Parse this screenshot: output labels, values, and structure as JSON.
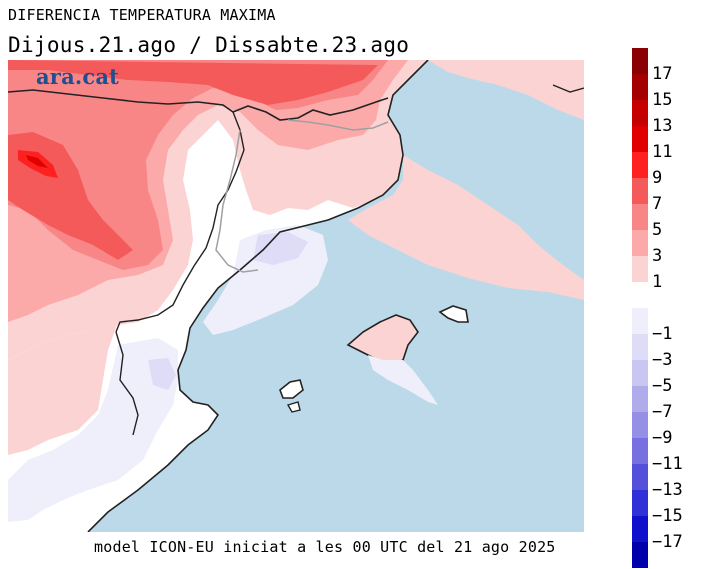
{
  "header": {
    "title": "DIFERENCIA TEMPERATURA MAXIMA",
    "dates": "Dijous.21.ago / Dissabte.23.ago"
  },
  "brand": {
    "label": "ara.cat",
    "color": "#1f4f8f"
  },
  "footer": {
    "text": "model ICON-EU iniciat a les 00 UTC del 21 ago 2025"
  },
  "colors": {
    "sea": "#bcd9ea",
    "border_line": "#222222",
    "regional_line": "#a0a0a0"
  },
  "legend": {
    "bins": [
      {
        "label": "17",
        "color": "#8b0000"
      },
      {
        "label": "15",
        "color": "#a50000"
      },
      {
        "label": "13",
        "color": "#c40000"
      },
      {
        "label": "11",
        "color": "#e00000"
      },
      {
        "label": "9",
        "color": "#ff2020"
      },
      {
        "label": "7",
        "color": "#f55a5a"
      },
      {
        "label": "5",
        "color": "#f98686"
      },
      {
        "label": "3",
        "color": "#fba9a9"
      },
      {
        "label": "1",
        "color": "#fcd3d3"
      },
      {
        "label": "",
        "color": "#ffffff"
      },
      {
        "label": "−1",
        "color": "#efeefb"
      },
      {
        "label": "−3",
        "color": "#dedcf6"
      },
      {
        "label": "−5",
        "color": "#c9c6f1"
      },
      {
        "label": "−7",
        "color": "#b0acec"
      },
      {
        "label": "−9",
        "color": "#9590e6"
      },
      {
        "label": "−11",
        "color": "#7670e0"
      },
      {
        "label": "−13",
        "color": "#5450da"
      },
      {
        "label": "−15",
        "color": "#3030d8"
      },
      {
        "label": "−17",
        "color": "#1010cc"
      },
      {
        "label": "",
        "color": "#0000aa"
      }
    ]
  }
}
